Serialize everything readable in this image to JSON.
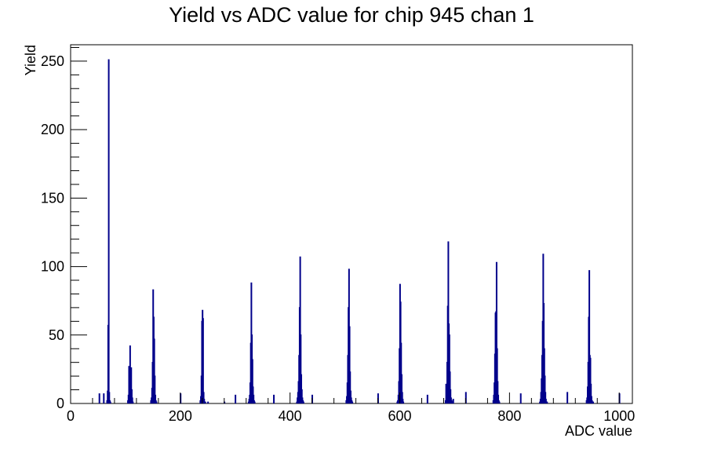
{
  "chart_data": {
    "type": "bar",
    "title": "Yield vs ADC value for chip 945 chan 1",
    "xlabel": "ADC value",
    "ylabel": "Yield",
    "xlim": [
      0,
      1024
    ],
    "ylim": [
      0,
      262
    ],
    "x_ticks": [
      0,
      200,
      400,
      600,
      800,
      1000
    ],
    "y_ticks": [
      0,
      50,
      100,
      150,
      200,
      250
    ],
    "grid": false,
    "legend": "none",
    "series": [
      {
        "color": "#00008b",
        "x": [
          52,
          60,
          66,
          67,
          68,
          69,
          70,
          71,
          72,
          104,
          105,
          106,
          107,
          108,
          109,
          110,
          111,
          112,
          113,
          146,
          147,
          148,
          149,
          150,
          151,
          152,
          153,
          154,
          155,
          156,
          200,
          236,
          237,
          238,
          239,
          240,
          241,
          242,
          243,
          244,
          245,
          250,
          280,
          300,
          324,
          325,
          326,
          327,
          328,
          329,
          330,
          331,
          332,
          333,
          334,
          335,
          370,
          412,
          413,
          414,
          415,
          416,
          417,
          418,
          419,
          420,
          421,
          422,
          423,
          424,
          440,
          502,
          503,
          504,
          505,
          506,
          507,
          508,
          509,
          510,
          511,
          512,
          513,
          560,
          595,
          596,
          597,
          598,
          599,
          600,
          601,
          602,
          603,
          604,
          605,
          606,
          650,
          683,
          684,
          685,
          686,
          687,
          688,
          689,
          690,
          691,
          692,
          693,
          694,
          695,
          697,
          720,
          770,
          771,
          772,
          773,
          774,
          775,
          776,
          777,
          778,
          779,
          780,
          781,
          820,
          855,
          856,
          857,
          858,
          859,
          860,
          861,
          862,
          863,
          864,
          865,
          866,
          867,
          868,
          905,
          940,
          941,
          942,
          943,
          944,
          945,
          946,
          947,
          948,
          949,
          950,
          951,
          952,
          1000
        ],
        "values": [
          7,
          7,
          2,
          9,
          57,
          251,
          8,
          2,
          1,
          2,
          6,
          27,
          20,
          42,
          20,
          26,
          10,
          4,
          1,
          2,
          4,
          11,
          30,
          83,
          63,
          47,
          20,
          6,
          2,
          1,
          7,
          2,
          5,
          20,
          60,
          68,
          62,
          8,
          3,
          1,
          1,
          1,
          1,
          6,
          1,
          3,
          6,
          15,
          44,
          88,
          50,
          32,
          12,
          6,
          2,
          1,
          6,
          1,
          4,
          8,
          16,
          35,
          70,
          107,
          50,
          21,
          10,
          4,
          2,
          1,
          6,
          2,
          5,
          15,
          35,
          70,
          98,
          56,
          23,
          9,
          4,
          2,
          1,
          7,
          1,
          2,
          6,
          16,
          40,
          87,
          74,
          44,
          21,
          8,
          3,
          1,
          6,
          2,
          14,
          10,
          30,
          71,
          118,
          58,
          50,
          23,
          10,
          4,
          2,
          1,
          3,
          8,
          2,
          6,
          15,
          36,
          66,
          67,
          103,
          40,
          16,
          6,
          2,
          1,
          7,
          1,
          3,
          8,
          18,
          35,
          60,
          109,
          73,
          40,
          20,
          8,
          3,
          1,
          1,
          8,
          2,
          4,
          12,
          30,
          63,
          97,
          35,
          33,
          14,
          5,
          2,
          1,
          1,
          7
        ]
      }
    ]
  }
}
